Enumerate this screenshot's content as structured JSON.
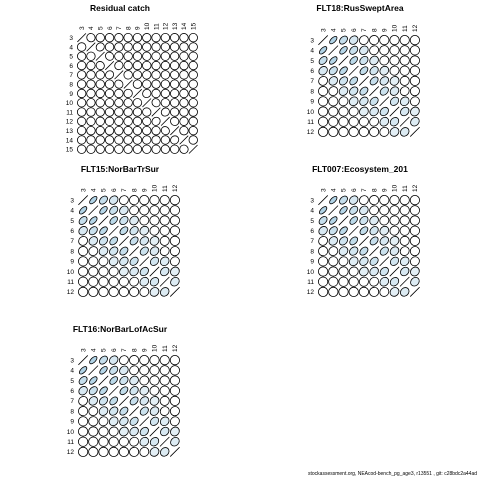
{
  "colors": {
    "fill": "#a7cde2",
    "stroke": "#000000",
    "background": "#ffffff"
  },
  "footer": "stockassessment.org, NEAcod-bench_pg_age3, r13551 , git: c28bdc2a44ad",
  "chart_data": [
    {
      "type": "heatmap",
      "title": "Residual catch",
      "ages": [
        3,
        4,
        5,
        6,
        7,
        8,
        9,
        10,
        11,
        12,
        13,
        14,
        15
      ],
      "encoding": "ellipse"
    },
    {
      "type": "heatmap",
      "title": "FLT18:RusSweptArea",
      "ages": [
        3,
        4,
        5,
        6,
        7,
        8,
        9,
        10,
        11,
        12
      ],
      "encoding": "ellipse"
    },
    {
      "type": "heatmap",
      "title": "FLT15:NorBarTrSur",
      "ages": [
        3,
        4,
        5,
        6,
        7,
        8,
        9,
        10,
        11,
        12
      ],
      "encoding": "ellipse"
    },
    {
      "type": "heatmap",
      "title": "FLT007:Ecosystem_201",
      "ages": [
        3,
        4,
        5,
        6,
        7,
        8,
        9,
        10,
        11,
        12
      ],
      "encoding": "ellipse"
    },
    {
      "type": "heatmap",
      "title": "FLT16:NorBarLofAcSur",
      "ages": [
        3,
        4,
        5,
        6,
        7,
        8,
        9,
        10,
        11,
        12
      ],
      "encoding": "ellipse"
    }
  ]
}
